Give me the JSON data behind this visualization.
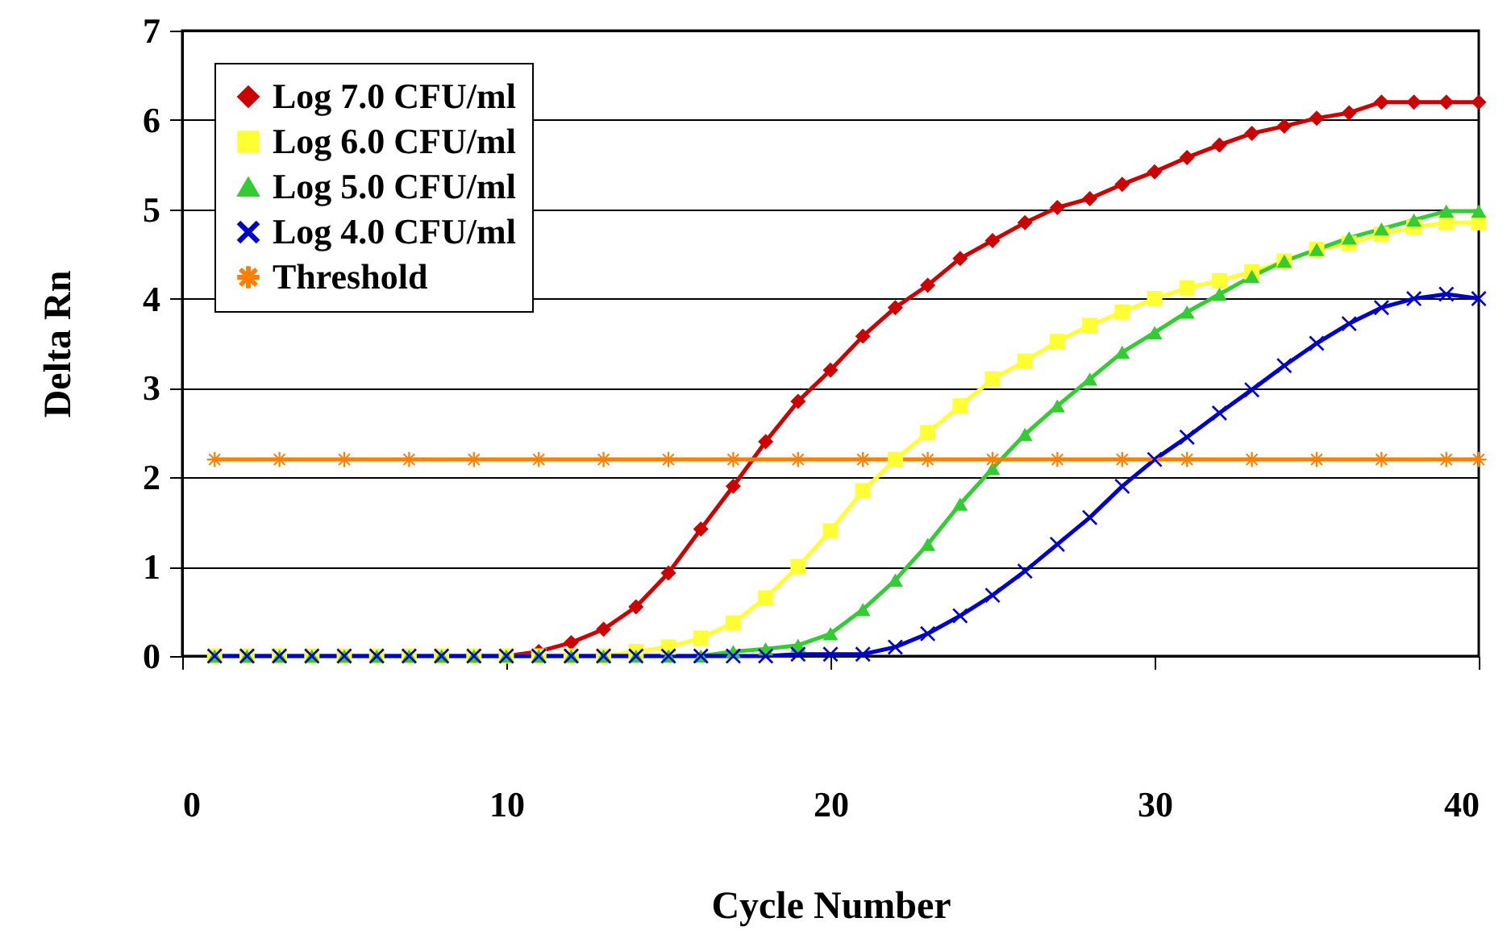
{
  "chart_data": {
    "type": "line",
    "xlabel": "Cycle Number",
    "ylabel": "Delta Rn",
    "x": [
      1,
      2,
      3,
      4,
      5,
      6,
      7,
      8,
      9,
      10,
      11,
      12,
      13,
      14,
      15,
      16,
      17,
      18,
      19,
      20,
      21,
      22,
      23,
      24,
      25,
      26,
      27,
      28,
      29,
      30,
      31,
      32,
      33,
      34,
      35,
      36,
      37,
      38,
      39,
      40
    ],
    "series": [
      {
        "name": "Log 7.0 CFU/ml",
        "color": "#cc0000",
        "marker": "diamond",
        "values": [
          null,
          null,
          null,
          null,
          null,
          null,
          null,
          null,
          0,
          0,
          0.05,
          0.15,
          0.3,
          0.55,
          0.93,
          1.42,
          1.9,
          2.4,
          2.85,
          3.2,
          3.58,
          3.9,
          4.15,
          4.45,
          4.65,
          4.85,
          5.02,
          5.12,
          5.28,
          5.42,
          5.58,
          5.72,
          5.85,
          5.93,
          6.02,
          6.08,
          6.2,
          6.2,
          6.2,
          6.2
        ]
      },
      {
        "name": "Log 6.0 CFU/ml",
        "color": "#ffff33",
        "marker": "square",
        "values": [
          0,
          0,
          0,
          0,
          0,
          0,
          0,
          0,
          0,
          0,
          0,
          0,
          0,
          0.05,
          0.1,
          0.2,
          0.37,
          0.65,
          1.0,
          1.4,
          1.85,
          2.2,
          2.5,
          2.8,
          3.1,
          3.3,
          3.52,
          3.7,
          3.85,
          4.0,
          4.12,
          4.2,
          4.3,
          4.42,
          4.55,
          4.62,
          4.72,
          4.8,
          4.85,
          4.85
        ]
      },
      {
        "name": "Log 5.0 CFU/ml",
        "color": "#33cc33",
        "marker": "triangle",
        "values": [
          0,
          0,
          0,
          0,
          0,
          0,
          0,
          0,
          0,
          0,
          0,
          0,
          0,
          0,
          0,
          0,
          0.05,
          0.08,
          0.12,
          0.25,
          0.52,
          0.85,
          1.25,
          1.7,
          2.1,
          2.48,
          2.8,
          3.1,
          3.4,
          3.62,
          3.85,
          4.05,
          4.25,
          4.42,
          4.55,
          4.68,
          4.78,
          4.88,
          4.98,
          4.98
        ]
      },
      {
        "name": "Log 4.0 CFU/ml",
        "color": "#0000cc",
        "marker": "cross",
        "values": [
          0,
          0,
          0,
          0,
          0,
          0,
          0,
          0,
          0,
          0,
          0,
          0,
          0,
          0,
          0,
          0,
          0,
          0,
          0.02,
          0.02,
          0.02,
          0.1,
          0.25,
          0.45,
          0.68,
          0.95,
          1.25,
          1.55,
          1.9,
          2.2,
          2.45,
          2.72,
          2.98,
          3.25,
          3.5,
          3.72,
          3.9,
          4.0,
          4.05,
          4.0
        ]
      },
      {
        "name": "Threshold",
        "color": "#ff8000",
        "marker": "star",
        "x": [
          1,
          3,
          5,
          7,
          9,
          11,
          13,
          15,
          17,
          19,
          21,
          23,
          25,
          27,
          29,
          31,
          33,
          35,
          37,
          39,
          40
        ],
        "values": [
          2.2,
          2.2,
          2.2,
          2.2,
          2.2,
          2.2,
          2.2,
          2.2,
          2.2,
          2.2,
          2.2,
          2.2,
          2.2,
          2.2,
          2.2,
          2.2,
          2.2,
          2.2,
          2.2,
          2.2,
          2.2
        ]
      }
    ],
    "xlim": [
      0,
      40
    ],
    "xticks": [
      0,
      10,
      20,
      30,
      40
    ],
    "ylim": [
      0,
      7
    ],
    "yticks": [
      {
        "value": 0,
        "label": "0"
      },
      {
        "value": 1,
        "label": "1"
      },
      {
        "value": 2,
        "label": "2"
      },
      {
        "value": 3,
        "label": "3"
      },
      {
        "value": 4,
        "label": "4"
      },
      {
        "value": 5,
        "label": "5"
      },
      {
        "value": 6,
        "label": "6"
      },
      {
        "value": 7,
        "label": "7"
      }
    ],
    "grid": "y",
    "legend": "top left",
    "line_style": "solid"
  }
}
